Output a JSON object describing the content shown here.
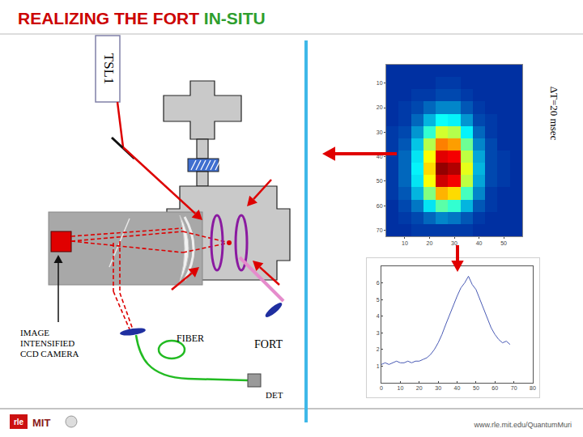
{
  "title": {
    "parts": [
      {
        "text": "REALIZING THE FORT",
        "color": "#cc0000"
      },
      {
        "text": "IN-SITU",
        "color": "#2e9e2e"
      }
    ]
  },
  "diagram": {
    "laser": "TSL1",
    "camera": [
      "IMAGE",
      "INTENSIFIED",
      "CCD CAMERA"
    ],
    "fiber": "FIBER",
    "fort": "FORT",
    "detector": "DET",
    "delay": "ΔT=20 msec"
  },
  "footer": {
    "url": "www.rle.mit.edu/QuantumMuri",
    "logos": [
      "rle",
      "MIT"
    ]
  },
  "chart_data": [
    {
      "type": "heatmap",
      "color": "Jet",
      "x": [
        5,
        10,
        15,
        20,
        25,
        30,
        35,
        40,
        45,
        50,
        55
      ],
      "y": [
        5,
        10,
        15,
        20,
        25,
        30,
        35,
        40,
        45,
        50,
        55,
        60,
        65,
        70
      ],
      "cells": [
        [
          0.1,
          0.1,
          0.1,
          0.1,
          0.1,
          0.1,
          0.1,
          0.1,
          0.1,
          0.1,
          0.1
        ],
        [
          0.1,
          0.1,
          0.1,
          0.1,
          0.12,
          0.12,
          0.1,
          0.1,
          0.1,
          0.1,
          0.1
        ],
        [
          0.1,
          0.1,
          0.12,
          0.12,
          0.14,
          0.14,
          0.12,
          0.1,
          0.1,
          0.1,
          0.1
        ],
        [
          0.1,
          0.12,
          0.14,
          0.18,
          0.22,
          0.22,
          0.16,
          0.12,
          0.1,
          0.1,
          0.1
        ],
        [
          0.1,
          0.12,
          0.18,
          0.28,
          0.38,
          0.36,
          0.24,
          0.14,
          0.12,
          0.1,
          0.1
        ],
        [
          0.12,
          0.14,
          0.24,
          0.42,
          0.58,
          0.55,
          0.36,
          0.18,
          0.12,
          0.1,
          0.1
        ],
        [
          0.12,
          0.16,
          0.3,
          0.55,
          0.75,
          0.72,
          0.48,
          0.22,
          0.14,
          0.1,
          0.1
        ],
        [
          0.12,
          0.18,
          0.34,
          0.62,
          0.9,
          0.88,
          0.56,
          0.26,
          0.14,
          0.12,
          0.1
        ],
        [
          0.12,
          0.18,
          0.36,
          0.66,
          0.98,
          0.95,
          0.6,
          0.28,
          0.14,
          0.12,
          0.1
        ],
        [
          0.12,
          0.18,
          0.34,
          0.62,
          0.92,
          0.88,
          0.56,
          0.26,
          0.14,
          0.12,
          0.1
        ],
        [
          0.12,
          0.16,
          0.28,
          0.5,
          0.7,
          0.66,
          0.44,
          0.22,
          0.12,
          0.1,
          0.1
        ],
        [
          0.1,
          0.14,
          0.2,
          0.34,
          0.46,
          0.42,
          0.28,
          0.16,
          0.12,
          0.1,
          0.1
        ],
        [
          0.1,
          0.12,
          0.14,
          0.18,
          0.22,
          0.2,
          0.16,
          0.12,
          0.1,
          0.1,
          0.1
        ],
        [
          0.1,
          0.1,
          0.12,
          0.12,
          0.12,
          0.12,
          0.12,
          0.1,
          0.1,
          0.1,
          0.1
        ]
      ],
      "zlim": [
        0,
        1
      ],
      "xlim": [
        2.5,
        57.5
      ],
      "ylim": [
        72.5,
        2.5
      ],
      "xticks": [
        10,
        20,
        30,
        40,
        50
      ],
      "yticks": [
        10,
        20,
        30,
        40,
        50,
        60,
        70
      ]
    },
    {
      "type": "line",
      "color": "#4a5bb5",
      "grid": false,
      "x": [
        0,
        2,
        4,
        6,
        8,
        10,
        12,
        14,
        16,
        18,
        20,
        22,
        24,
        26,
        28,
        30,
        32,
        34,
        36,
        38,
        40,
        42,
        44,
        46,
        48,
        50,
        52,
        54,
        56,
        58,
        60,
        62,
        64,
        66,
        68
      ],
      "values": [
        1.1,
        1.2,
        1.1,
        1.2,
        1.3,
        1.2,
        1.2,
        1.3,
        1.2,
        1.3,
        1.3,
        1.4,
        1.5,
        1.7,
        2.0,
        2.4,
        2.9,
        3.5,
        4.1,
        4.7,
        5.2,
        5.7,
        6.0,
        6.4,
        5.9,
        5.6,
        5.0,
        4.4,
        3.8,
        3.3,
        2.9,
        2.6,
        2.4,
        2.5,
        2.3
      ],
      "xlim": [
        0,
        80
      ],
      "ylim": [
        0,
        7
      ],
      "xticks": [
        0,
        10,
        20,
        30,
        40,
        50,
        60,
        70,
        80
      ],
      "yticks": [
        1,
        2,
        3,
        4,
        5,
        6
      ]
    }
  ]
}
